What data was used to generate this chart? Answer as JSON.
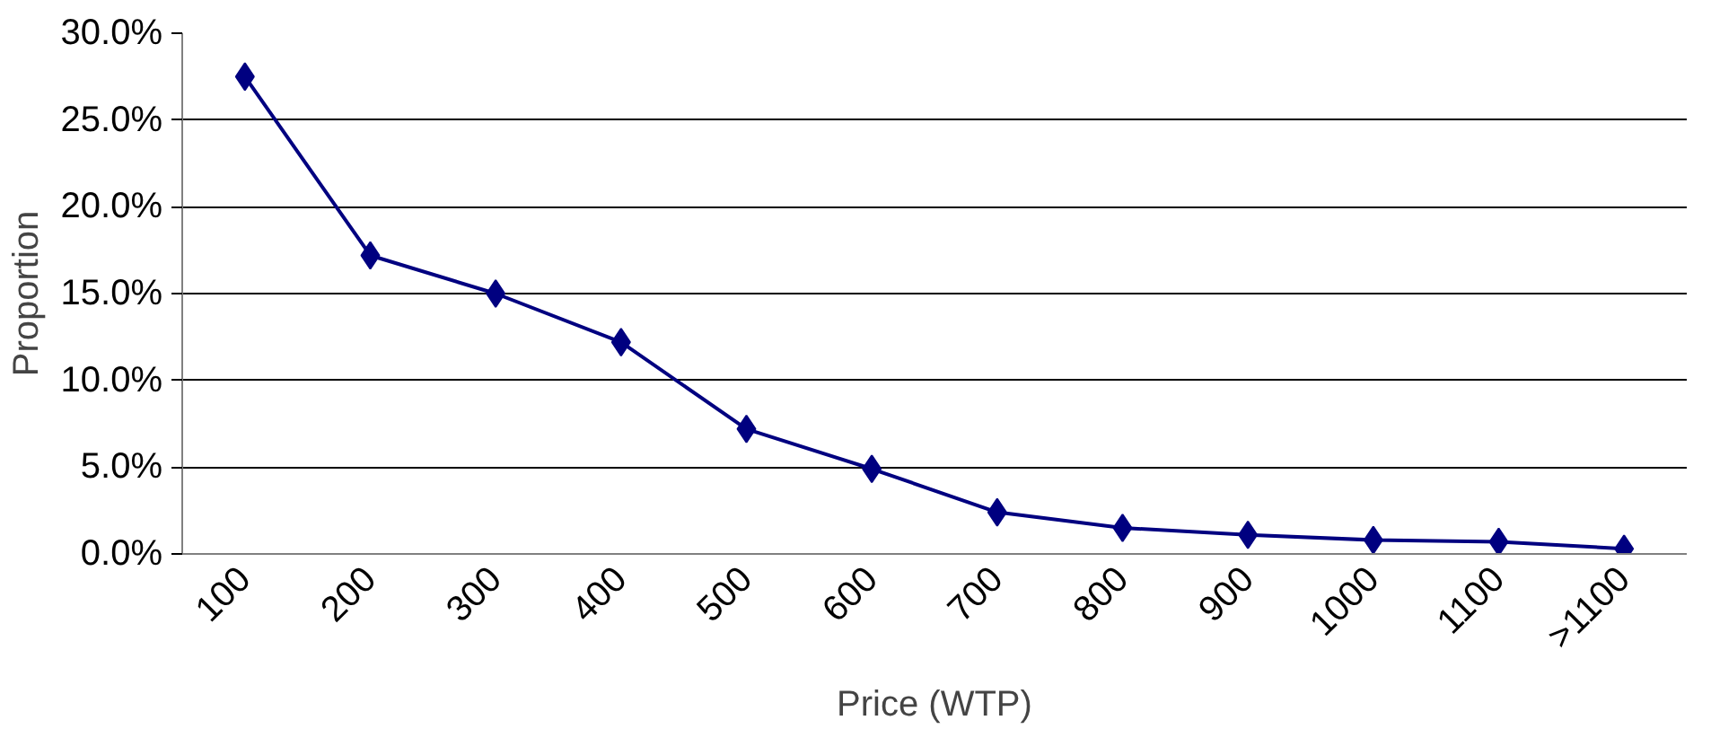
{
  "chart_data": {
    "type": "line",
    "xlabel": "Price (WTP)",
    "ylabel": "Proportion",
    "categories": [
      "100",
      "200",
      "300",
      "400",
      "500",
      "600",
      "700",
      "800",
      "900",
      "1000",
      "1100",
      ">1100"
    ],
    "series": [
      {
        "color": "#000080",
        "values": [
          27.5,
          17.2,
          15.0,
          12.2,
          7.2,
          4.9,
          2.4,
          1.5,
          1.1,
          0.8,
          0.7,
          0.3
        ]
      }
    ],
    "ylim": [
      0,
      30
    ],
    "yticks": [
      {
        "value": 0,
        "label": "0.0%"
      },
      {
        "value": 5,
        "label": "5.0%"
      },
      {
        "value": 10,
        "label": "10.0%"
      },
      {
        "value": 15,
        "label": "15.0%"
      },
      {
        "value": 20,
        "label": "20.0%"
      },
      {
        "value": 25,
        "label": "25.0%"
      },
      {
        "value": 30,
        "label": "30.0%"
      }
    ],
    "grid": "y",
    "marker": "diamond",
    "line_style": "solid"
  }
}
